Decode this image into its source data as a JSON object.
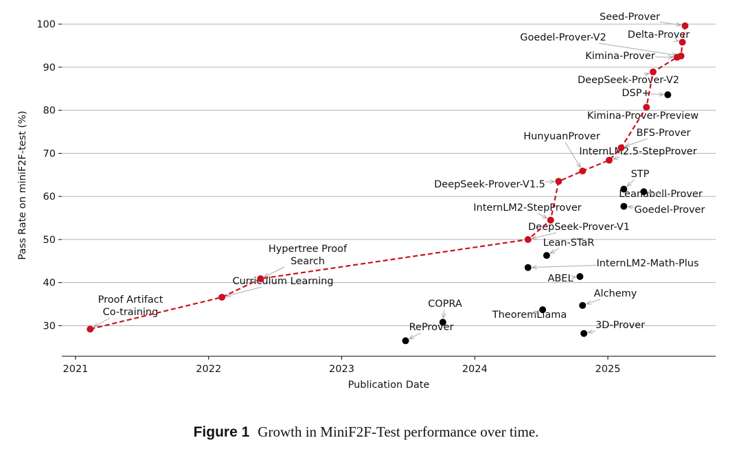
{
  "chart_data": {
    "type": "scatter",
    "x_label": "Publication Date",
    "y_label": "Pass Rate on miniF2F-test (%)",
    "xlim": [
      2020.897,
      2025.81
    ],
    "ylim": [
      22.9,
      104
    ],
    "xticks": [
      2021,
      2022,
      2023,
      2024,
      2025
    ],
    "yticks": [
      30,
      40,
      50,
      60,
      70,
      80,
      90,
      100
    ],
    "grid": true,
    "series": [
      {
        "color": "#cc1020",
        "connected": true,
        "labels": [
          [
            "Proof Artifact",
            "Co-training"
          ],
          [
            "Curriculum Learning"
          ],
          [
            "Hypertree Proof",
            "Search"
          ],
          [
            "DeepSeek-Prover-V1"
          ],
          [
            "InternLM2-StepProver"
          ],
          [
            "DeepSeek-Prover-V1.5"
          ],
          [
            "HunyuanProver"
          ],
          [
            "InternLM2.5-StepProver"
          ],
          [
            "BFS-Prover"
          ],
          [
            "Kimina-Prover-Preview"
          ],
          [
            "DeepSeek-Prover-V2"
          ],
          [
            "Kimina-Prover"
          ],
          [
            "Goedel-Prover-V2"
          ],
          [
            "Delta-Prover"
          ],
          [
            "Seed-Prover"
          ]
        ],
        "x": [
          2021.11,
          2022.1,
          2022.39,
          2024.4,
          2024.57,
          2024.63,
          2024.81,
          2025.01,
          2025.1,
          2025.29,
          2025.34,
          2025.52,
          2025.55,
          2025.56,
          2025.58
        ],
        "values": [
          29.2,
          36.6,
          40.9,
          50.0,
          54.5,
          63.5,
          65.9,
          68.4,
          71.3,
          80.7,
          88.9,
          92.3,
          92.6,
          95.8,
          99.6
        ]
      },
      {
        "color": "#000000",
        "connected": false,
        "labels": [
          [
            "DSP+"
          ],
          [
            "STP"
          ],
          [
            "Leanabell-Prover"
          ],
          [
            "Goedel-Prover"
          ],
          [
            "Lean-STaR"
          ],
          [
            "InternLM2-Math-Plus"
          ],
          [
            "ABEL"
          ],
          [
            "Alchemy"
          ],
          [
            "TheoremLlama"
          ],
          [
            "3D-Prover"
          ],
          [
            "COPRA"
          ],
          [
            "ReProver"
          ]
        ],
        "x": [
          2025.45,
          2025.12,
          2025.27,
          2025.12,
          2024.54,
          2024.4,
          2024.79,
          2024.81,
          2024.51,
          2024.82,
          2023.76,
          2023.48
        ],
        "values": [
          83.6,
          61.7,
          61.1,
          57.7,
          46.3,
          43.5,
          41.4,
          34.7,
          33.7,
          28.2,
          30.8,
          26.5
        ]
      }
    ]
  },
  "caption": {
    "label": "Figure 1",
    "text": "Growth in MiniF2F-Test performance over time."
  }
}
